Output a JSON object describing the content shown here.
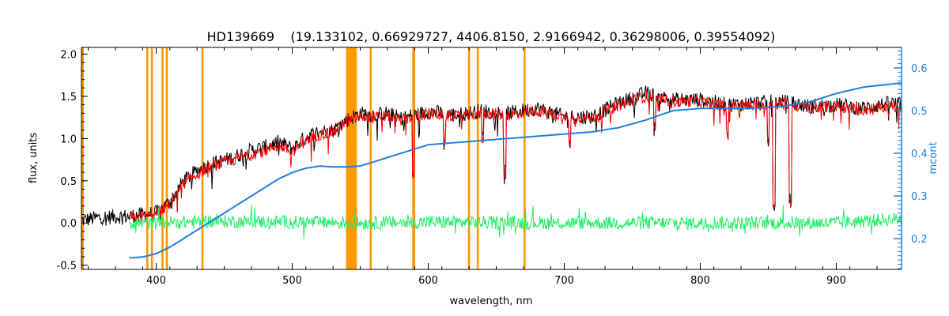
{
  "colors": {
    "flux_observed": "#000000",
    "flux_model": "#ff0000",
    "residual": "#22ee66",
    "continuum": "#1f7fe0",
    "masked_region": "#ff9900",
    "masked_region_inner": "#ffff00",
    "axis": "#000000",
    "right_axis": "#1f7fe0"
  },
  "chart_data": {
    "type": "line",
    "title": "HD139669    (19.133102, 0.66929727, 4406.8150, 2.9166942, 0.36298006, 0.39554092)",
    "xlabel": "wavelength, nm",
    "ylabel": "flux, units",
    "y2label": "mcont",
    "xlim": [
      345,
      948
    ],
    "ylim": [
      -0.55,
      2.08
    ],
    "y2lim": [
      0.128,
      0.648
    ],
    "xticks": [
      400,
      500,
      600,
      700,
      800,
      900
    ],
    "xtick_labels": [
      "400",
      "500",
      "600",
      "700",
      "800",
      "900"
    ],
    "yticks": [
      -0.5,
      0.0,
      0.5,
      1.0,
      1.5,
      2.0
    ],
    "ytick_labels": [
      "-0.5",
      "0.0",
      "0.5",
      "1.0",
      "1.5",
      "2.0"
    ],
    "y2ticks": [
      0.2,
      0.3,
      0.4,
      0.5,
      0.6
    ],
    "y2tick_labels": [
      "0.2",
      "0.3",
      "0.4",
      "0.5",
      "0.6"
    ],
    "grid": false,
    "legend": "none",
    "masked_lines": [
      393.4,
      396.8,
      404.6,
      407.8,
      434.0,
      541.0,
      544.0,
      546.5,
      557.7,
      589.0,
      589.6,
      630.0,
      636.4,
      670.8
    ],
    "masked_bands": [
      [
        539.5,
        547.5
      ]
    ],
    "series": [
      {
        "role": "observed",
        "axis": "left",
        "x": [
          345,
          360,
          380,
          400,
          410,
          420,
          430,
          440,
          450,
          460,
          470,
          480,
          490,
          500,
          510,
          520,
          530,
          540,
          550,
          560,
          570,
          580,
          590,
          600,
          620,
          640,
          660,
          680,
          700,
          720,
          740,
          760,
          780,
          800,
          820,
          840,
          860,
          880,
          900,
          920,
          940,
          948
        ],
        "y": [
          0.03,
          0.07,
          0.08,
          0.12,
          0.25,
          0.5,
          0.62,
          0.7,
          0.74,
          0.8,
          0.86,
          0.9,
          0.96,
          0.88,
          1.02,
          1.08,
          1.1,
          1.22,
          1.3,
          1.28,
          1.3,
          1.24,
          1.28,
          1.32,
          1.28,
          1.33,
          1.3,
          1.36,
          1.26,
          1.26,
          1.42,
          1.54,
          1.46,
          1.46,
          1.4,
          1.42,
          1.44,
          1.38,
          1.4,
          1.36,
          1.42,
          1.4
        ]
      },
      {
        "role": "model",
        "axis": "left",
        "x": [
          380,
          400,
          410,
          420,
          430,
          440,
          450,
          460,
          470,
          480,
          490,
          500,
          510,
          520,
          530,
          540,
          550,
          560,
          570,
          580,
          590,
          600,
          620,
          640,
          660,
          680,
          700,
          720,
          740,
          760,
          780,
          800,
          820,
          840,
          860,
          880,
          900,
          920,
          940,
          948
        ],
        "y": [
          0.05,
          0.1,
          0.22,
          0.46,
          0.58,
          0.66,
          0.72,
          0.76,
          0.82,
          0.86,
          0.92,
          0.84,
          0.98,
          1.05,
          1.08,
          1.2,
          1.26,
          1.25,
          1.27,
          1.22,
          1.26,
          1.3,
          1.26,
          1.3,
          1.28,
          1.34,
          1.24,
          1.24,
          1.4,
          1.5,
          1.44,
          1.44,
          1.38,
          1.4,
          1.42,
          1.36,
          1.38,
          1.34,
          1.38,
          1.36
        ]
      },
      {
        "role": "residual",
        "axis": "left",
        "x": [
          380,
          400,
          440,
          500,
          560,
          600,
          700,
          800,
          900,
          948
        ],
        "y": [
          0.0,
          0.0,
          0.02,
          0.01,
          0.0,
          0.01,
          0.0,
          0.0,
          0.0,
          0.05
        ]
      },
      {
        "role": "continuum",
        "axis": "right",
        "x": [
          380,
          390,
          400,
          410,
          420,
          430,
          440,
          450,
          460,
          470,
          480,
          490,
          500,
          510,
          520,
          530,
          540,
          550,
          560,
          570,
          580,
          590,
          600,
          620,
          640,
          660,
          680,
          700,
          720,
          740,
          760,
          780,
          800,
          820,
          840,
          860,
          880,
          900,
          920,
          940,
          948
        ],
        "y": [
          0.155,
          0.157,
          0.165,
          0.18,
          0.2,
          0.22,
          0.24,
          0.26,
          0.28,
          0.3,
          0.32,
          0.34,
          0.355,
          0.365,
          0.37,
          0.368,
          0.368,
          0.37,
          0.38,
          0.39,
          0.4,
          0.41,
          0.42,
          0.425,
          0.43,
          0.435,
          0.44,
          0.445,
          0.45,
          0.46,
          0.478,
          0.5,
          0.505,
          0.505,
          0.505,
          0.51,
          0.52,
          0.54,
          0.555,
          0.562,
          0.565
        ]
      }
    ],
    "absorption_features": [
      {
        "x": 589.0,
        "depth": 0.7
      },
      {
        "x": 656.3,
        "depth": 0.7
      },
      {
        "x": 612.0,
        "depth": 0.35
      },
      {
        "x": 640.0,
        "depth": 0.3
      },
      {
        "x": 704.0,
        "depth": 0.3
      },
      {
        "x": 766.5,
        "depth": 0.4
      },
      {
        "x": 820.0,
        "depth": 0.35
      },
      {
        "x": 850.0,
        "depth": 0.45
      },
      {
        "x": 854.2,
        "depth": 1.2
      },
      {
        "x": 866.2,
        "depth": 1.15
      }
    ]
  }
}
